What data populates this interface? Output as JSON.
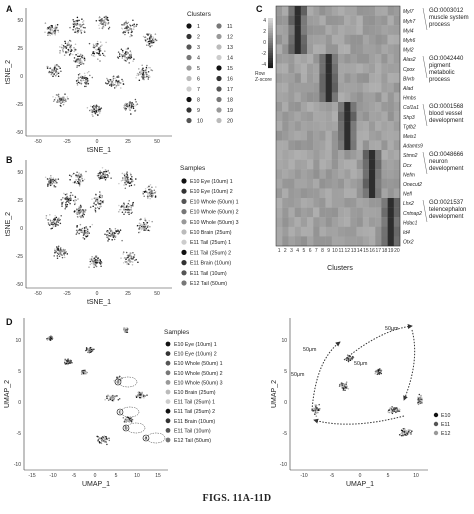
{
  "panels": {
    "A": {
      "label": "A",
      "xlabel": "tSNE_1",
      "ylabel": "tSNE_2",
      "xticks": [
        "-50",
        "-25",
        "0",
        "25",
        "50"
      ],
      "yticks": [
        "50",
        "25",
        "0",
        "-25",
        "-50"
      ],
      "legend_title": "Clusters",
      "legend": [
        "1",
        "2",
        "3",
        "4",
        "5",
        "6",
        "7",
        "8",
        "9",
        "10",
        "11",
        "12",
        "13",
        "14",
        "15",
        "16",
        "17",
        "18",
        "19",
        "20"
      ]
    },
    "B": {
      "label": "B",
      "xlabel": "tSNE_1",
      "ylabel": "tSNE_2",
      "xticks": [
        "-50",
        "-25",
        "0",
        "25",
        "50"
      ],
      "yticks": [
        "50",
        "25",
        "0",
        "-25",
        "-50"
      ],
      "legend_title": "Samples",
      "legend": [
        "E10 Eye (10um) 1",
        "E10 Eye (10um) 2",
        "E10 Whole (50um) 1",
        "E10 Whole (50um) 2",
        "E10 Whole (50um) 3",
        "E10 Brain (25um)",
        "E11 Tail (25um) 1",
        "E11 Tail (25um) 2",
        "E11 Brain (10um)",
        "E11 Tail (10um)",
        "E12 Tail (50um)"
      ]
    },
    "C": {
      "label": "C",
      "scale_ticks": [
        "4",
        "2",
        "0",
        "-2",
        "-4"
      ],
      "scale_label": "Row\nZ-score",
      "xlabel": "Clusters",
      "xticks": [
        "1",
        "2",
        "3",
        "4",
        "5",
        "6",
        "7",
        "8",
        "9",
        "10",
        "11",
        "12",
        "13",
        "14",
        "15",
        "16",
        "17",
        "18",
        "19",
        "20"
      ],
      "gene_groups": [
        {
          "genes": [
            "Myl7",
            "Myh7",
            "Myl4",
            "Myh6",
            "Myl2"
          ],
          "go": [
            "GO:0003012",
            "muscle system",
            "process"
          ]
        },
        {
          "genes": [
            "Alas2",
            "Cpox",
            "Blvrb",
            "Alad",
            "Hmbs"
          ],
          "go": [
            "GO:0042440",
            "pigment",
            "metabolic",
            "process"
          ]
        },
        {
          "genes": [
            "Col1a1",
            "Shp3",
            "Tgfb2",
            "Meis1",
            "Adamts9"
          ],
          "go": [
            "GO:0001568",
            "blood vessel",
            "development"
          ]
        },
        {
          "genes": [
            "Stmn2",
            "Dcx",
            "Nefm",
            "Onecut2",
            "Nefl"
          ],
          "go": [
            "GO:0048666",
            "neuron",
            "development"
          ]
        },
        {
          "genes": [
            "Lhx2",
            "Cntnap2",
            "Hdac1",
            "Id4",
            "Otx2"
          ],
          "go": [
            "GO:0021537",
            "telencephalon",
            "development"
          ]
        }
      ]
    },
    "D": {
      "label": "D",
      "left": {
        "xlabel": "UMAP_1",
        "ylabel": "UMAP_2",
        "xticks": [
          "-15",
          "-10",
          "-5",
          "0",
          "5",
          "10",
          "15"
        ],
        "yticks": [
          "10",
          "5",
          "0",
          "-5",
          "-10"
        ],
        "legend_title": "Samples",
        "legend": [
          "E10 Eye (10um) 1",
          "E10 Eye (10um) 2",
          "E10 Whole (50um) 1",
          "E10 Whole (50um) 2",
          "E10 Whole (50um) 3",
          "E10 Brain (25um)",
          "E11 Tail (25um) 1",
          "E11 Tail (25um) 2",
          "E11 Brain (10um)",
          "E11 Tail (10um)",
          "E12 Tail (50um)"
        ],
        "markers": [
          "d",
          "c",
          "b",
          "a"
        ]
      },
      "right": {
        "xlabel": "UMAP_1",
        "ylabel": "UMAP_2",
        "xticks": [
          "-10",
          "-5",
          "0",
          "5",
          "10"
        ],
        "yticks": [
          "10",
          "5",
          "0",
          "-5",
          "-10"
        ],
        "annotations": [
          "50μm",
          "50μm",
          "50μm",
          "50μm"
        ],
        "legend": [
          "E10",
          "E11",
          "E12"
        ],
        "legend_colors": [
          "#111111",
          "#555555",
          "#999999"
        ]
      }
    }
  },
  "caption": "FIGS. 11A-11D"
}
